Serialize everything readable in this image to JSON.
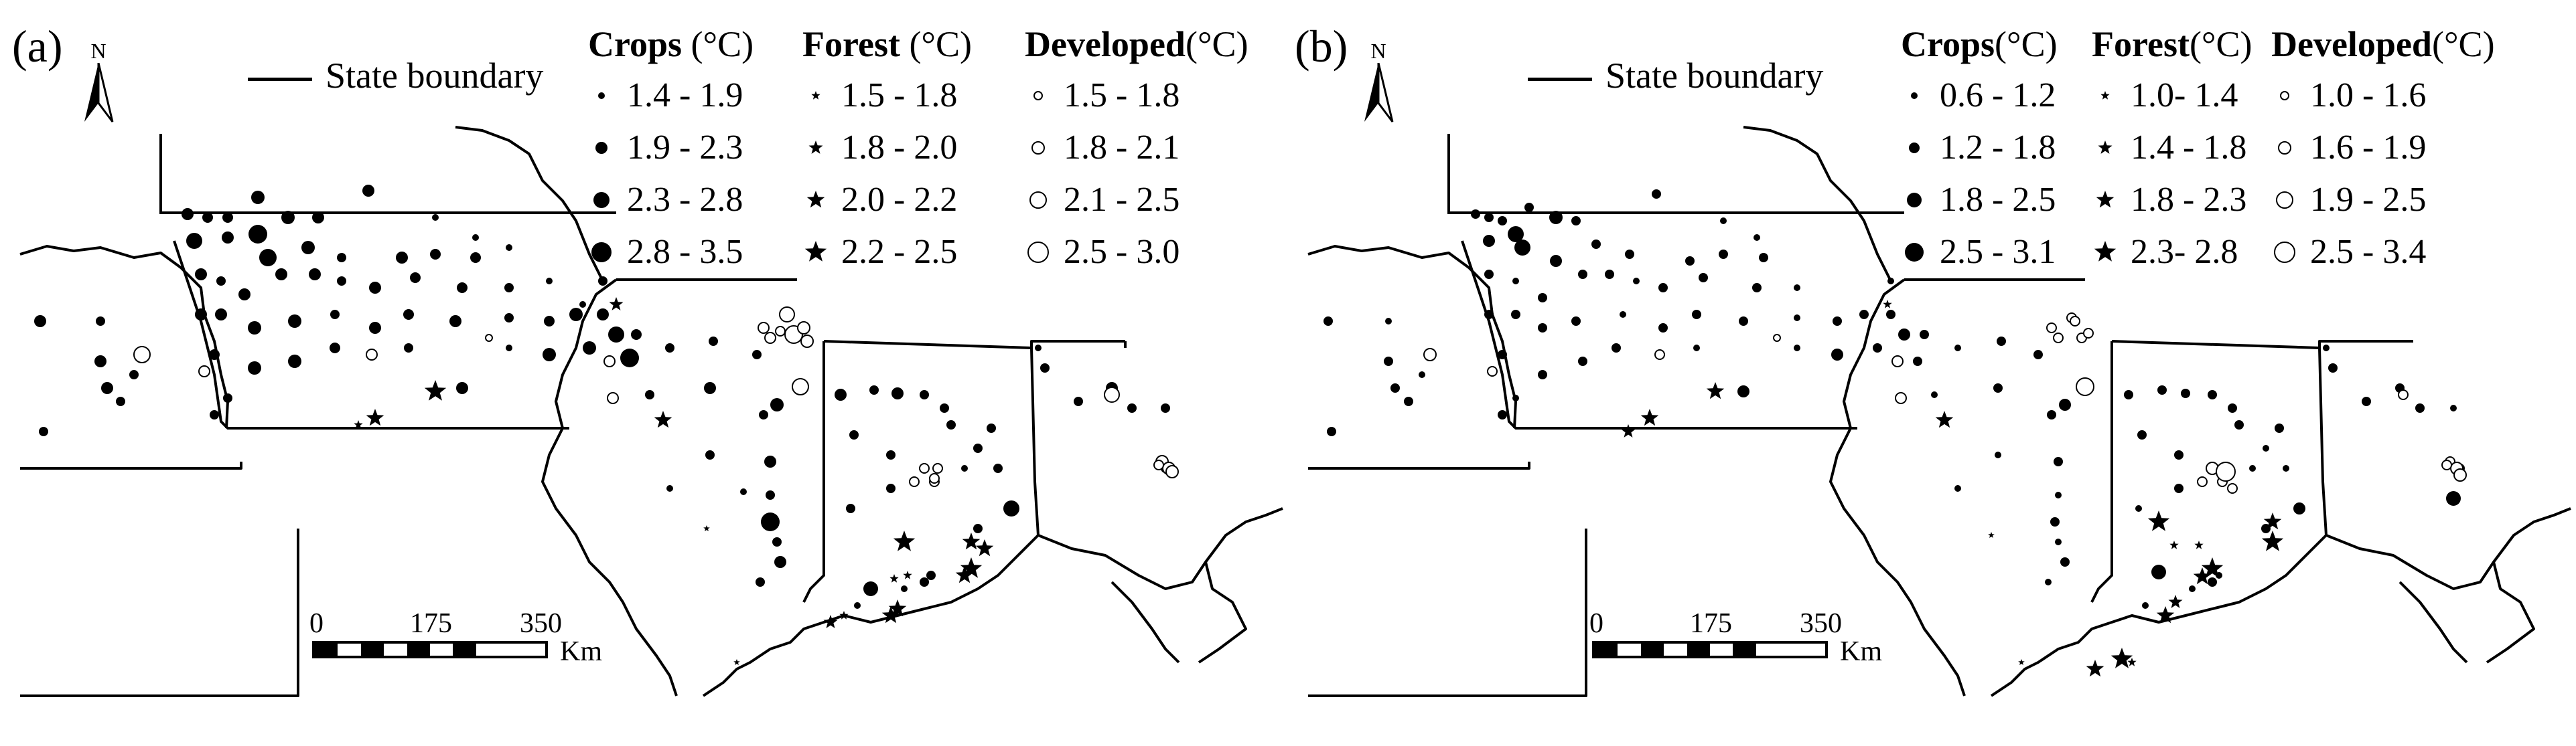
{
  "panels": [
    {
      "label": "(a)",
      "north_label": "N",
      "state_boundary_label": "State boundary",
      "legend": [
        {
          "name": "Crops",
          "unit": "(°C)",
          "symbol": "dot",
          "ranges": [
            "1.4 - 1.9",
            "1.9 - 2.3",
            "2.3 - 2.8",
            "2.8 - 3.5"
          ]
        },
        {
          "name": "Forest",
          "unit": "(°C)",
          "symbol": "star",
          "ranges": [
            "1.5 - 1.8",
            "1.8 - 2.0",
            "2.0 - 2.2",
            "2.2 - 2.5"
          ]
        },
        {
          "name": "Developed",
          "unit": "(°C)",
          "symbol": "ring",
          "ranges": [
            "1.5 - 1.8",
            "1.8 - 2.1",
            "2.1 - 2.5",
            "2.5 - 3.0"
          ]
        }
      ],
      "scale_bar": {
        "ticks": [
          "0",
          "175",
          "350"
        ],
        "unit": "Km"
      }
    },
    {
      "label": "(b)",
      "north_label": "N",
      "state_boundary_label": "State boundary",
      "legend": [
        {
          "name": "Crops",
          "unit": "(°C)",
          "symbol": "dot",
          "ranges": [
            "0.6 - 1.2",
            "1.2 - 1.8",
            "1.8 - 2.5",
            "2.5 - 3.1"
          ]
        },
        {
          "name": "Forest",
          "unit": "(°C)",
          "symbol": "star",
          "ranges": [
            "1.0- 1.4",
            "1.4 - 1.8",
            "1.8 - 2.3",
            "2.3- 2.8"
          ]
        },
        {
          "name": "Developed",
          "unit": "(°C)",
          "symbol": "ring",
          "ranges": [
            "1.0 - 1.6",
            "1.6 - 1.9",
            "1.9 - 2.5",
            "2.5 - 3.4"
          ]
        }
      ],
      "scale_bar": {
        "ticks": [
          "0",
          "175",
          "350"
        ],
        "unit": "Km"
      }
    }
  ],
  "colors": {
    "ink": "#000000",
    "background": "#ffffff"
  }
}
